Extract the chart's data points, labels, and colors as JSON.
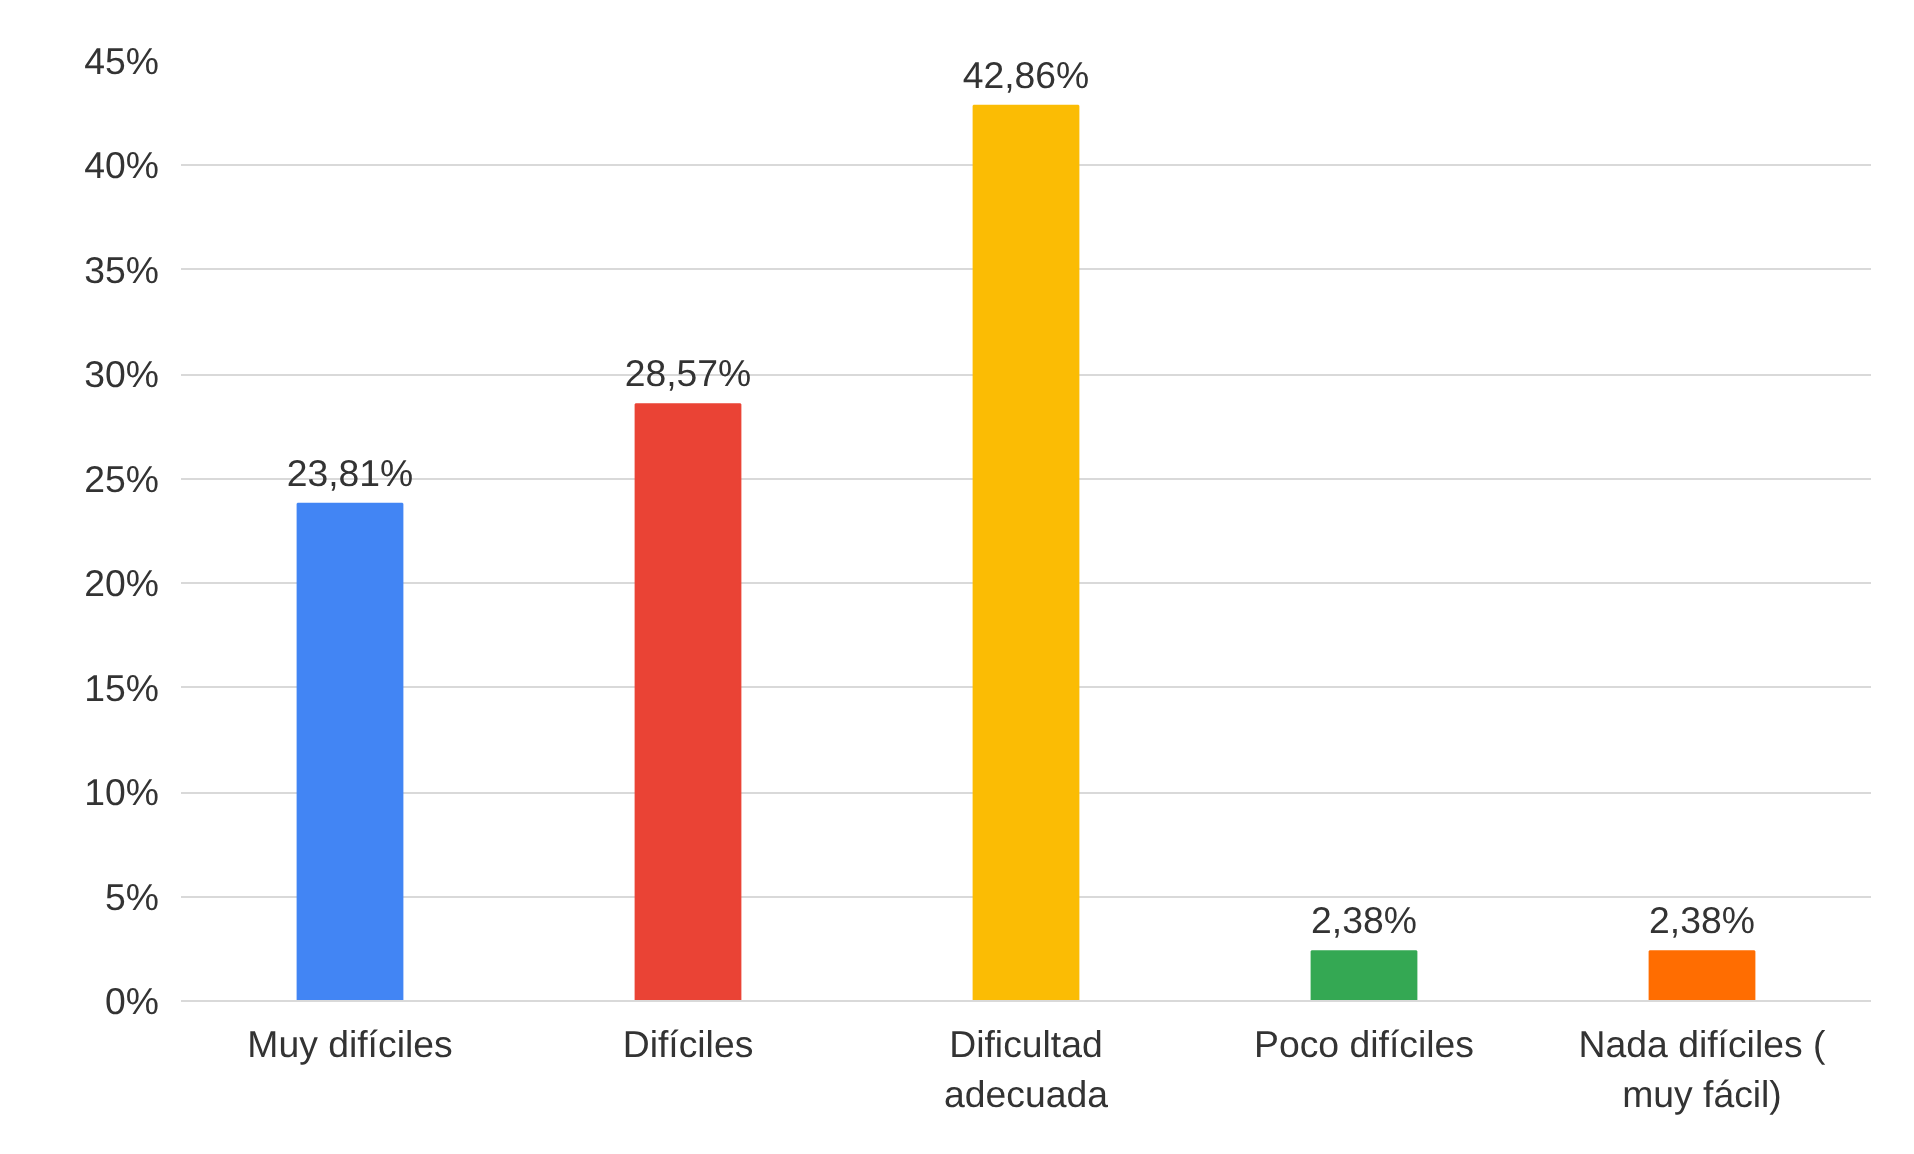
{
  "chart_data": {
    "type": "bar",
    "categories": [
      "Muy difíciles",
      "Difíciles",
      "Dificultad\nadecuada",
      "Poco difíciles",
      "Nada difíciles (\nmuy fácil)"
    ],
    "values": [
      23.81,
      28.57,
      42.86,
      2.38,
      2.38
    ],
    "colors": [
      "#4285f4",
      "#ea4335",
      "#fbbc04",
      "#34a853",
      "#ff6d01"
    ],
    "value_labels": [
      "23,81%",
      "28,57%",
      "42,86%",
      "2,38%",
      "2,38%"
    ],
    "ylim": [
      0,
      45
    ],
    "yticks": [
      {
        "value": 0,
        "label": "0%"
      },
      {
        "value": 5,
        "label": "5%"
      },
      {
        "value": 10,
        "label": "10%"
      },
      {
        "value": 15,
        "label": "15%"
      },
      {
        "value": 20,
        "label": "20%"
      },
      {
        "value": 25,
        "label": "25%"
      },
      {
        "value": 30,
        "label": "30%"
      },
      {
        "value": 35,
        "label": "35%"
      },
      {
        "value": 40,
        "label": "40%"
      },
      {
        "value": 45,
        "label": "45%"
      }
    ],
    "grid": "y"
  }
}
